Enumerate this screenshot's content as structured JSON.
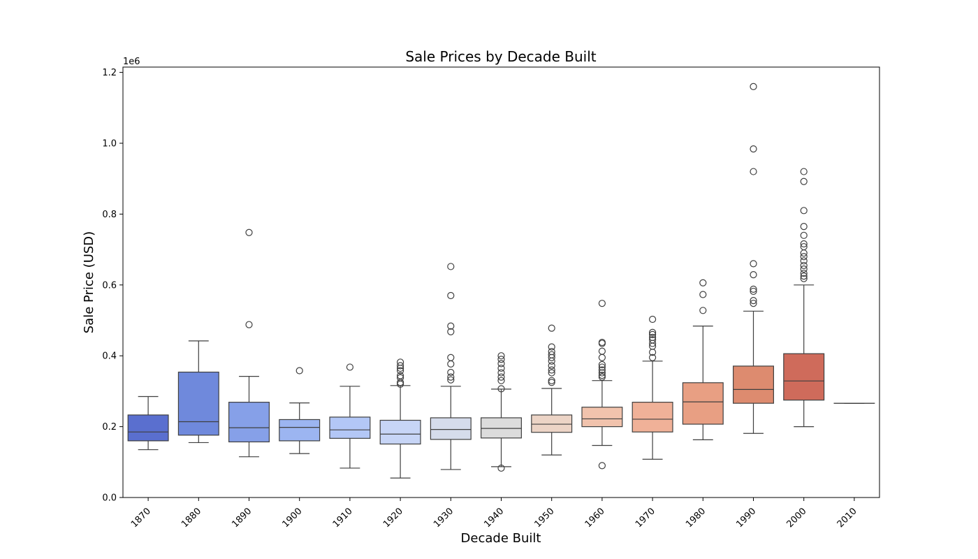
{
  "chart_data": {
    "type": "box",
    "title": "Sale Prices by Decade Built",
    "xlabel": "Decade Built",
    "ylabel": "Sale Price (USD)",
    "y_offset_label": "1e6",
    "ylim": [
      0,
      1215000
    ],
    "yticks": [
      0,
      200000,
      400000,
      600000,
      800000,
      1000000,
      1200000
    ],
    "ytick_labels": [
      "0.0",
      "0.2",
      "0.4",
      "0.6",
      "0.8",
      "1.0",
      "1.2"
    ],
    "categories": [
      "1870",
      "1880",
      "1890",
      "1900",
      "1910",
      "1920",
      "1930",
      "1940",
      "1950",
      "1960",
      "1970",
      "1980",
      "1990",
      "2000",
      "2010"
    ],
    "boxes": [
      {
        "category": "1870",
        "whisker_low": 135000,
        "q1": 160000,
        "median": 185000,
        "q3": 233000,
        "whisker_high": 285000,
        "outliers": [],
        "color": "#5a6fcf"
      },
      {
        "category": "1880",
        "whisker_low": 155000,
        "q1": 176000,
        "median": 214000,
        "q3": 354000,
        "whisker_high": 442000,
        "outliers": [],
        "color": "#6f89dc"
      },
      {
        "category": "1890",
        "whisker_low": 115000,
        "q1": 157000,
        "median": 197000,
        "q3": 269000,
        "whisker_high": 342000,
        "outliers": [
          488000,
          748000
        ],
        "color": "#86a0e8"
      },
      {
        "category": "1900",
        "whisker_low": 124000,
        "q1": 160000,
        "median": 198000,
        "q3": 220000,
        "whisker_high": 267000,
        "outliers": [
          358000
        ],
        "color": "#9cb5f1"
      },
      {
        "category": "1910",
        "whisker_low": 83000,
        "q1": 167000,
        "median": 191000,
        "q3": 227000,
        "whisker_high": 314000,
        "outliers": [
          368000
        ],
        "color": "#b3c7f6"
      },
      {
        "category": "1920",
        "whisker_low": 55000,
        "q1": 151000,
        "median": 179000,
        "q3": 218000,
        "whisker_high": 316000,
        "outliers": [
          320000,
          325000,
          338000,
          344000,
          358000,
          365000,
          372000,
          382000
        ],
        "color": "#c7d5f6"
      },
      {
        "category": "1930",
        "whisker_low": 79000,
        "q1": 164000,
        "median": 192000,
        "q3": 225000,
        "whisker_high": 314000,
        "outliers": [
          332000,
          340000,
          353000,
          377000,
          395000,
          468000,
          484000,
          570000,
          652000
        ],
        "color": "#d5dceb"
      },
      {
        "category": "1940",
        "whisker_low": 87000,
        "q1": 168000,
        "median": 195000,
        "q3": 225000,
        "whisker_high": 306000,
        "outliers": [
          83000,
          307000,
          330000,
          340000,
          352000,
          365000,
          378000,
          390000,
          400000
        ],
        "color": "#dcdcdc"
      },
      {
        "category": "1950",
        "whisker_low": 120000,
        "q1": 184000,
        "median": 207000,
        "q3": 233000,
        "whisker_high": 308000,
        "outliers": [
          325000,
          330000,
          352000,
          360000,
          372000,
          385000,
          395000,
          403000,
          412000,
          425000,
          478000
        ],
        "color": "#ecd4c6"
      },
      {
        "category": "1960",
        "whisker_low": 147000,
        "q1": 200000,
        "median": 222000,
        "q3": 255000,
        "whisker_high": 330000,
        "outliers": [
          90000,
          340000,
          345000,
          352000,
          360000,
          368000,
          375000,
          395000,
          413000,
          435000,
          438000,
          548000
        ],
        "color": "#f1c3ad"
      },
      {
        "category": "1970",
        "whisker_low": 108000,
        "q1": 185000,
        "median": 221000,
        "q3": 269000,
        "whisker_high": 385000,
        "outliers": [
          395000,
          410000,
          427000,
          435000,
          445000,
          452000,
          460000,
          466000,
          503000
        ],
        "color": "#f0b198"
      },
      {
        "category": "1980",
        "whisker_low": 163000,
        "q1": 207000,
        "median": 270000,
        "q3": 324000,
        "whisker_high": 484000,
        "outliers": [
          528000,
          573000,
          606000
        ],
        "color": "#e89f83"
      },
      {
        "category": "1990",
        "whisker_low": 181000,
        "q1": 266000,
        "median": 305000,
        "q3": 371000,
        "whisker_high": 526000,
        "outliers": [
          548000,
          556000,
          582000,
          588000,
          629000,
          660000,
          920000,
          984000,
          1160000
        ],
        "color": "#dd8b6f"
      },
      {
        "category": "2000",
        "whisker_low": 200000,
        "q1": 275000,
        "median": 329000,
        "q3": 406000,
        "whisker_high": 600000,
        "outliers": [
          618000,
          625000,
          633000,
          645000,
          655000,
          668000,
          680000,
          690000,
          708000,
          716000,
          740000,
          765000,
          810000,
          892000,
          920000
        ],
        "color": "#cf6b5b"
      },
      {
        "category": "2010",
        "whisker_low": 266000,
        "q1": 266000,
        "median": 266000,
        "q3": 266000,
        "whisker_high": 266000,
        "outliers": [],
        "color": "#bf4e44"
      }
    ],
    "grid": false,
    "legend": "none"
  }
}
